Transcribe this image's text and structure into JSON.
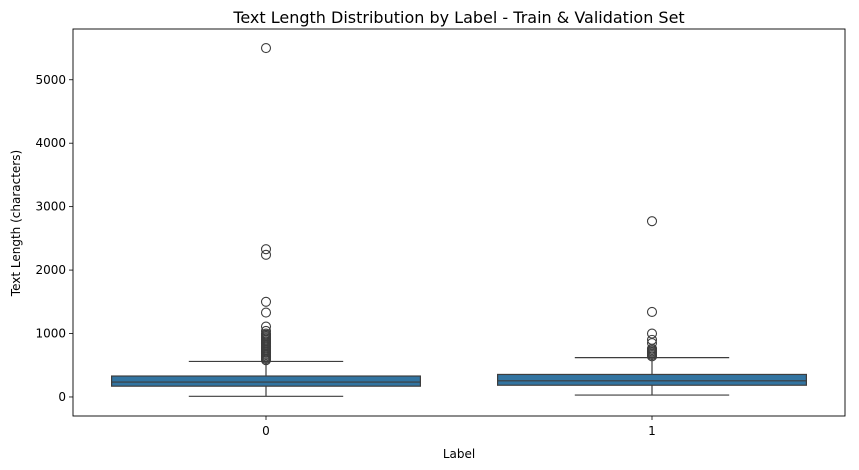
{
  "chart_data": {
    "type": "box",
    "title": "Text Length Distribution by Label - Train & Validation Set",
    "xlabel": "Label",
    "ylabel": "Text Length (characters)",
    "categories": [
      "0",
      "1"
    ],
    "ylim": [
      -300,
      5800
    ],
    "yticks": [
      0,
      1000,
      2000,
      3000,
      4000,
      5000
    ],
    "grid": false,
    "box_color": "#3274a1",
    "boxes": [
      {
        "label": "0",
        "whisker_low": 10,
        "q1": 170,
        "median": 235,
        "q3": 330,
        "whisker_high": 560,
        "outliers": [
          5500,
          2330,
          2240,
          1500,
          1330,
          1110,
          1040,
          1000,
          980,
          960,
          940,
          920,
          900,
          880,
          860,
          840,
          820,
          800,
          780,
          760,
          740,
          720,
          700,
          680,
          660,
          640,
          620,
          600,
          580
        ]
      },
      {
        "label": "1",
        "whisker_low": 30,
        "q1": 185,
        "median": 255,
        "q3": 355,
        "whisker_high": 620,
        "outliers": [
          2770,
          1340,
          1000,
          900,
          850,
          760,
          740,
          720,
          700,
          680,
          660,
          640
        ]
      }
    ]
  }
}
